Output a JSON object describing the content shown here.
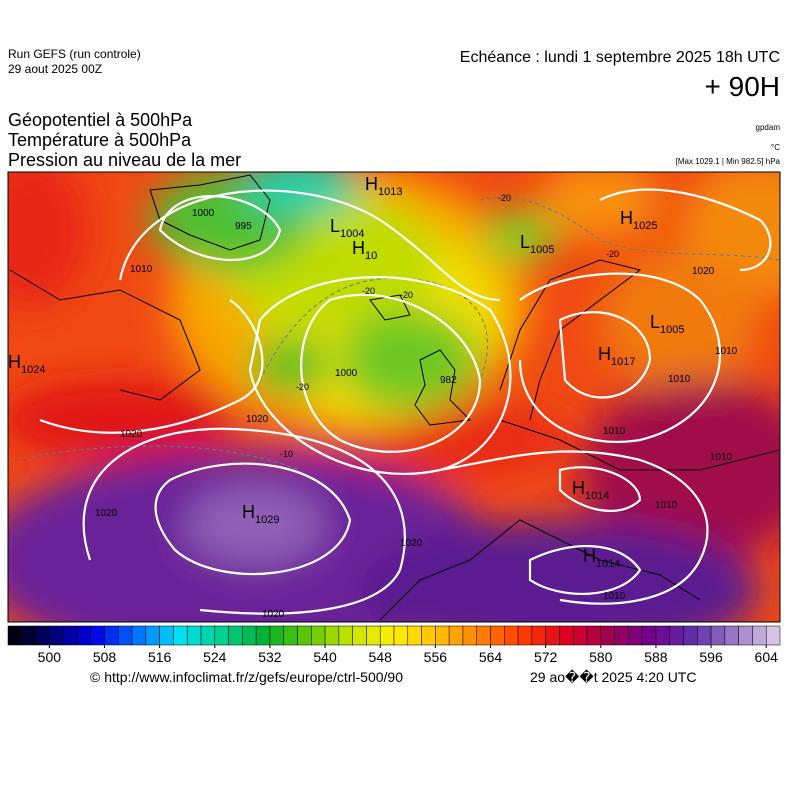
{
  "header": {
    "run": "Run GEFS (run controle)",
    "run_date": "29 aout 2025 00Z",
    "valid": "Echéance : lundi 1 septembre 2025 18h UTC",
    "lead": "+ 90H",
    "fields": [
      "Géopotentiel à 500hPa",
      "Température à 500hPa",
      "Pression au niveau de la mer"
    ],
    "units": [
      "gpdam",
      "°C",
      "[Max 1029.1 | Min 982.5] hPa"
    ]
  },
  "map": {
    "centers": [
      {
        "kind": "H",
        "value": "1013"
      },
      {
        "kind": "L",
        "value": "1004"
      },
      {
        "kind": "H",
        "value": "10"
      },
      {
        "kind": "L",
        "value": "1005"
      },
      {
        "kind": "H",
        "value": "1025"
      },
      {
        "kind": "L",
        "value": "1005"
      },
      {
        "kind": "H",
        "value": "1017"
      },
      {
        "kind": "H",
        "value": "1024"
      },
      {
        "kind": "H",
        "value": "1029"
      },
      {
        "kind": "H",
        "value": "1014"
      },
      {
        "kind": "H",
        "value": "1014"
      }
    ],
    "isobar_labels": [
      "995",
      "1000",
      "1010",
      "1020",
      "1020",
      "1000",
      "982",
      "1020",
      "1020",
      "1020",
      "1020",
      "1010",
      "1010",
      "1010",
      "1010",
      "1010",
      "1010"
    ],
    "temperature_labels": [
      "-20",
      "-20",
      "-20",
      "-20",
      "-20",
      "-10"
    ]
  },
  "colorbar": {
    "range": [
      494,
      606
    ],
    "step": 2,
    "ticks": [
      500,
      508,
      516,
      524,
      532,
      540,
      548,
      556,
      564,
      572,
      580,
      588,
      596,
      604
    ],
    "colors": [
      "#000000",
      "#00006e",
      "#0000e6",
      "#0070ff",
      "#00e0f0",
      "#00d090",
      "#00b030",
      "#60c800",
      "#c8e400",
      "#fff000",
      "#ffc000",
      "#ff8000",
      "#ff3c00",
      "#e00020",
      "#a00050",
      "#700090",
      "#6030a8",
      "#a080c8",
      "#e0d0ec"
    ]
  },
  "footer": {
    "source": "© http://www.infoclimat.fr/z/gefs/europe/ctrl-500/90",
    "generated": "29 ao��t 2025  4:20 UTC"
  }
}
